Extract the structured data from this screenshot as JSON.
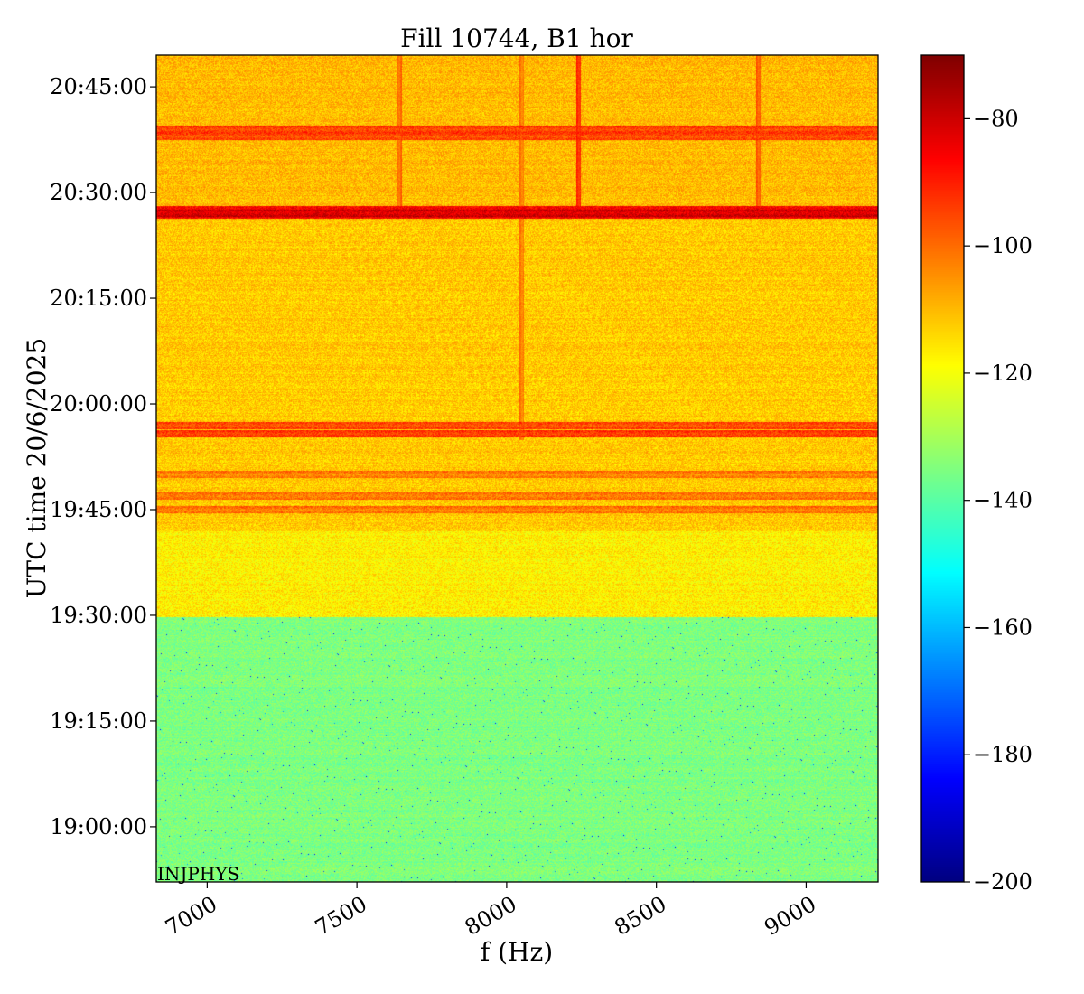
{
  "chart_data": {
    "type": "heatmap",
    "title": "Fill 10744, B1 hor",
    "xlabel": "f (Hz)",
    "ylabel": "UTC time 20/6/2025",
    "xlim": [
      6830,
      9240
    ],
    "ylim": [
      "18:52:10",
      "20:49:30"
    ],
    "x_ticks": [
      7000,
      7500,
      8000,
      8500,
      9000
    ],
    "x_tick_labels": [
      "7000",
      "7500",
      "8000",
      "8500",
      "9000"
    ],
    "y_ticks": [
      "19:00:00",
      "19:15:00",
      "19:30:00",
      "19:45:00",
      "20:00:00",
      "20:15:00",
      "20:30:00",
      "20:45:00"
    ],
    "colorbar": {
      "colormap": "jet",
      "vmin": -200,
      "vmax": -70,
      "ticks": [
        -80,
        -100,
        -120,
        -140,
        -160,
        -180,
        -200
      ],
      "tick_labels": [
        "−80",
        "−100",
        "−120",
        "−140",
        "−160",
        "−180",
        "−200"
      ]
    },
    "annotation": "INJPHYS",
    "segments": [
      {
        "from": "18:52:10",
        "to": "19:29:50",
        "level": -135
      },
      {
        "from": "19:29:50",
        "to": "19:42:00",
        "level": -117
      },
      {
        "from": "19:42:00",
        "to": "20:26:20",
        "level": -112
      },
      {
        "from": "20:26:20",
        "to": "20:28:10",
        "level": -86
      },
      {
        "from": "20:28:10",
        "to": "20:49:30",
        "level": -110
      }
    ],
    "horizontal_bands": [
      {
        "time": "19:45:00",
        "level": -104
      },
      {
        "time": "19:47:00",
        "level": -104
      },
      {
        "time": "19:50:00",
        "level": -105
      },
      {
        "time": "19:55:50",
        "level": -96
      },
      {
        "time": "19:57:00",
        "level": -98
      },
      {
        "time": "20:27:10",
        "level": -84
      },
      {
        "time": "20:38:00",
        "level": -98
      },
      {
        "time": "20:39:00",
        "level": -97
      }
    ],
    "vertical_lines": [
      {
        "freq": 7640,
        "from": "20:28:10",
        "to": "20:49:30",
        "level": -104
      },
      {
        "freq": 8050,
        "from": "19:55:00",
        "to": "20:49:30",
        "level": -106
      },
      {
        "freq": 8240,
        "from": "20:28:10",
        "to": "20:49:30",
        "level": -96
      },
      {
        "freq": 8840,
        "from": "20:28:10",
        "to": "20:49:30",
        "level": -102
      }
    ]
  }
}
